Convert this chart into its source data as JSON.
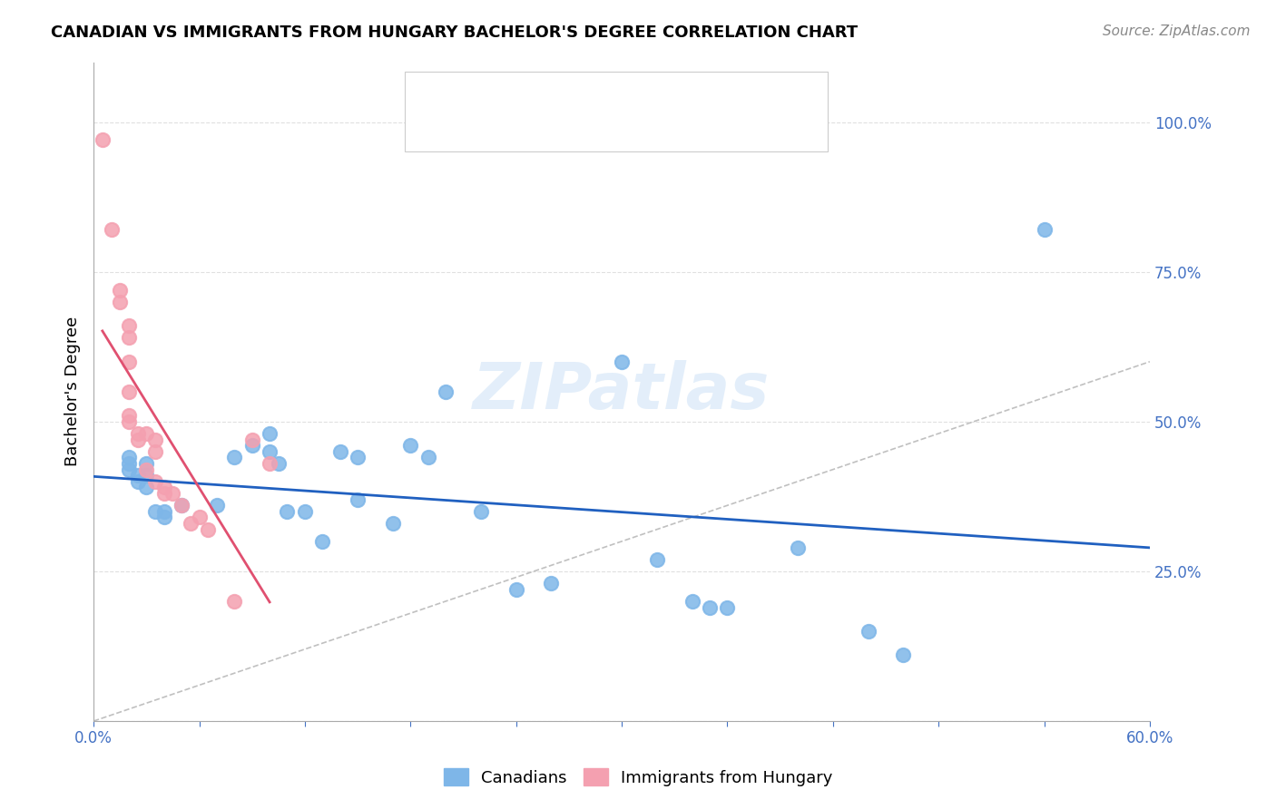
{
  "title": "CANADIAN VS IMMIGRANTS FROM HUNGARY BACHELOR'S DEGREE CORRELATION CHART",
  "source": "Source: ZipAtlas.com",
  "xlabel": "",
  "ylabel": "Bachelor's Degree",
  "xlim": [
    0.0,
    0.6
  ],
  "ylim": [
    0.0,
    1.05
  ],
  "xticks": [
    0.0,
    0.06,
    0.12,
    0.18,
    0.24,
    0.3,
    0.36,
    0.42,
    0.48,
    0.54,
    0.6
  ],
  "xticklabels": [
    "0.0%",
    "",
    "",
    "",
    "",
    "",
    "",
    "",
    "",
    "",
    "60.0%"
  ],
  "ytick_positions": [
    0.0,
    0.25,
    0.5,
    0.75,
    1.0
  ],
  "yticklabels": [
    "",
    "25.0%",
    "50.0%",
    "75.0%",
    "100.0%"
  ],
  "watermark": "ZIPatlas",
  "canadians_color": "#7EB6E8",
  "immigrants_color": "#F4A0B0",
  "trend_canadian_color": "#2060C0",
  "trend_immigrant_color": "#E05070",
  "diag_color": "#C0C0C0",
  "canadians_x": [
    0.02,
    0.02,
    0.02,
    0.025,
    0.025,
    0.03,
    0.03,
    0.03,
    0.035,
    0.04,
    0.04,
    0.05,
    0.07,
    0.08,
    0.09,
    0.1,
    0.1,
    0.105,
    0.11,
    0.12,
    0.13,
    0.14,
    0.15,
    0.15,
    0.17,
    0.18,
    0.19,
    0.2,
    0.22,
    0.24,
    0.26,
    0.3,
    0.32,
    0.34,
    0.35,
    0.36,
    0.4,
    0.44,
    0.46,
    0.54
  ],
  "canadians_y": [
    0.42,
    0.43,
    0.44,
    0.4,
    0.41,
    0.39,
    0.41,
    0.43,
    0.35,
    0.34,
    0.35,
    0.36,
    0.36,
    0.44,
    0.46,
    0.45,
    0.48,
    0.43,
    0.35,
    0.35,
    0.3,
    0.45,
    0.44,
    0.37,
    0.33,
    0.46,
    0.44,
    0.55,
    0.35,
    0.22,
    0.23,
    0.6,
    0.27,
    0.2,
    0.19,
    0.19,
    0.29,
    0.15,
    0.11,
    0.82
  ],
  "immigrants_x": [
    0.005,
    0.01,
    0.015,
    0.015,
    0.02,
    0.02,
    0.02,
    0.02,
    0.02,
    0.02,
    0.025,
    0.025,
    0.03,
    0.03,
    0.035,
    0.035,
    0.035,
    0.04,
    0.04,
    0.045,
    0.05,
    0.055,
    0.06,
    0.065,
    0.08,
    0.09,
    0.1
  ],
  "immigrants_y": [
    0.97,
    0.82,
    0.7,
    0.72,
    0.64,
    0.66,
    0.6,
    0.55,
    0.51,
    0.5,
    0.47,
    0.48,
    0.48,
    0.42,
    0.45,
    0.47,
    0.4,
    0.39,
    0.38,
    0.38,
    0.36,
    0.33,
    0.34,
    0.32,
    0.2,
    0.47,
    0.43
  ],
  "background_color": "#FFFFFF",
  "grid_color": "#E0E0E0"
}
